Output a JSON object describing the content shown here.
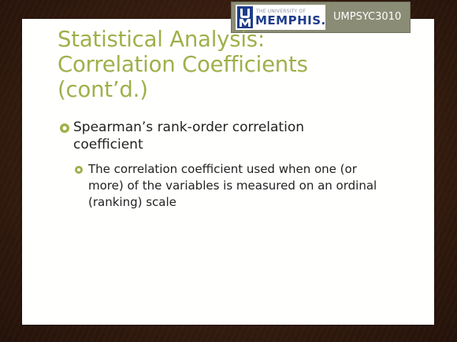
{
  "header": {
    "logo": {
      "small_text": "THE UNIVERSITY OF",
      "name_text": "MEMPHIS.",
      "mark_text": "U M"
    },
    "course_code": "UMPSYC3010"
  },
  "slide": {
    "title_lines": [
      "Statistical Analysis:",
      "Correlation Coefficients",
      "(cont’d.)"
    ],
    "bullets": [
      {
        "text": "Spearman’s rank-order correlation coefficient",
        "icon": "circle-check-icon",
        "sub_bullets": [
          {
            "text": "The correlation coefficient used when one (or more) of the variables is measured on an ordinal (ranking) scale",
            "icon": "circle-check-icon"
          }
        ]
      }
    ]
  },
  "colors": {
    "title": "#9fb04a",
    "bullet_icon": "#9fb04a",
    "body_text": "#222222",
    "logo_box": "#8a8c75",
    "memphis_blue": "#1f3d8a",
    "background_wood": "#3a1f10"
  }
}
